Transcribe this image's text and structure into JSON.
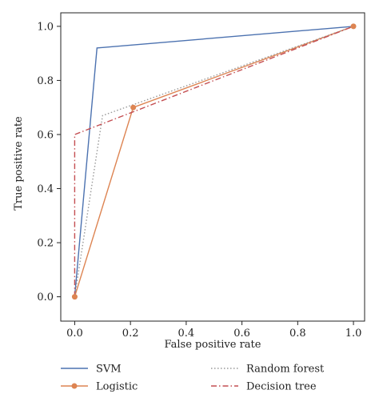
{
  "chart_data": {
    "type": "line",
    "title": "",
    "xlabel": "False positive rate",
    "ylabel": "True positive rate",
    "xlim": [
      -0.05,
      1.04
    ],
    "ylim": [
      -0.09,
      1.05
    ],
    "xticks": [
      0.0,
      0.2,
      0.4,
      0.6,
      0.8,
      1.0
    ],
    "yticks": [
      0.0,
      0.2,
      0.4,
      0.6,
      0.8,
      1.0
    ],
    "xtick_labels": [
      "0.0",
      "0.2",
      "0.4",
      "0.6",
      "0.8",
      "1.0"
    ],
    "ytick_labels": [
      "0.0",
      "0.2",
      "0.4",
      "0.6",
      "0.8",
      "1.0"
    ],
    "grid": false,
    "legend_placement": "below",
    "series": [
      {
        "name": "SVM",
        "color": "#4c72b0",
        "style": "solid",
        "marker": "none",
        "x": [
          0.0,
          0.08,
          1.0
        ],
        "y": [
          0.0,
          0.92,
          1.0
        ]
      },
      {
        "name": "Logistic",
        "color": "#dd8452",
        "style": "solid",
        "marker": "circle",
        "x": [
          0.0,
          0.21,
          1.0
        ],
        "y": [
          0.0,
          0.7,
          1.0
        ]
      },
      {
        "name": "Random forest",
        "color": "#999999",
        "style": "dotted",
        "marker": "none",
        "x": [
          0.0,
          0.1,
          1.0
        ],
        "y": [
          0.0,
          0.67,
          1.0
        ]
      },
      {
        "name": "Decision tree",
        "color": "#c44e52",
        "style": "dashdot",
        "marker": "none",
        "x": [
          0.0,
          0.0,
          1.0
        ],
        "y": [
          0.0,
          0.6,
          1.0
        ]
      }
    ]
  }
}
